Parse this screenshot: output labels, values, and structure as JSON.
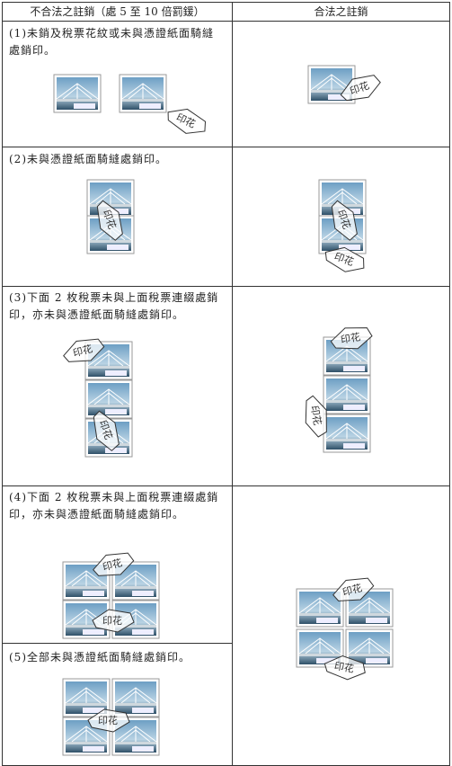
{
  "header": {
    "left": "不合法之註銷（處 5 至 10 倍罰鍰）",
    "right": "合法之註銷"
  },
  "rows": [
    {
      "text": "(1)未銷及稅票花紋或未與憑證紙面騎縫處銷印。"
    },
    {
      "text": "(2)未與憑證紙面騎縫處銷印。"
    },
    {
      "text": "(3)下面 2 枚稅票未與上面稅票連綴處銷印，亦未與憑證紙面騎縫處銷印。"
    },
    {
      "text": "(4)下面 2 枚稅票未與上面稅票連綴處銷印，亦未與憑證紙面騎縫處銷印。"
    },
    {
      "text": "(5)全部未與憑證紙面騎縫處銷印。"
    }
  ],
  "seal_text": "印花"
}
